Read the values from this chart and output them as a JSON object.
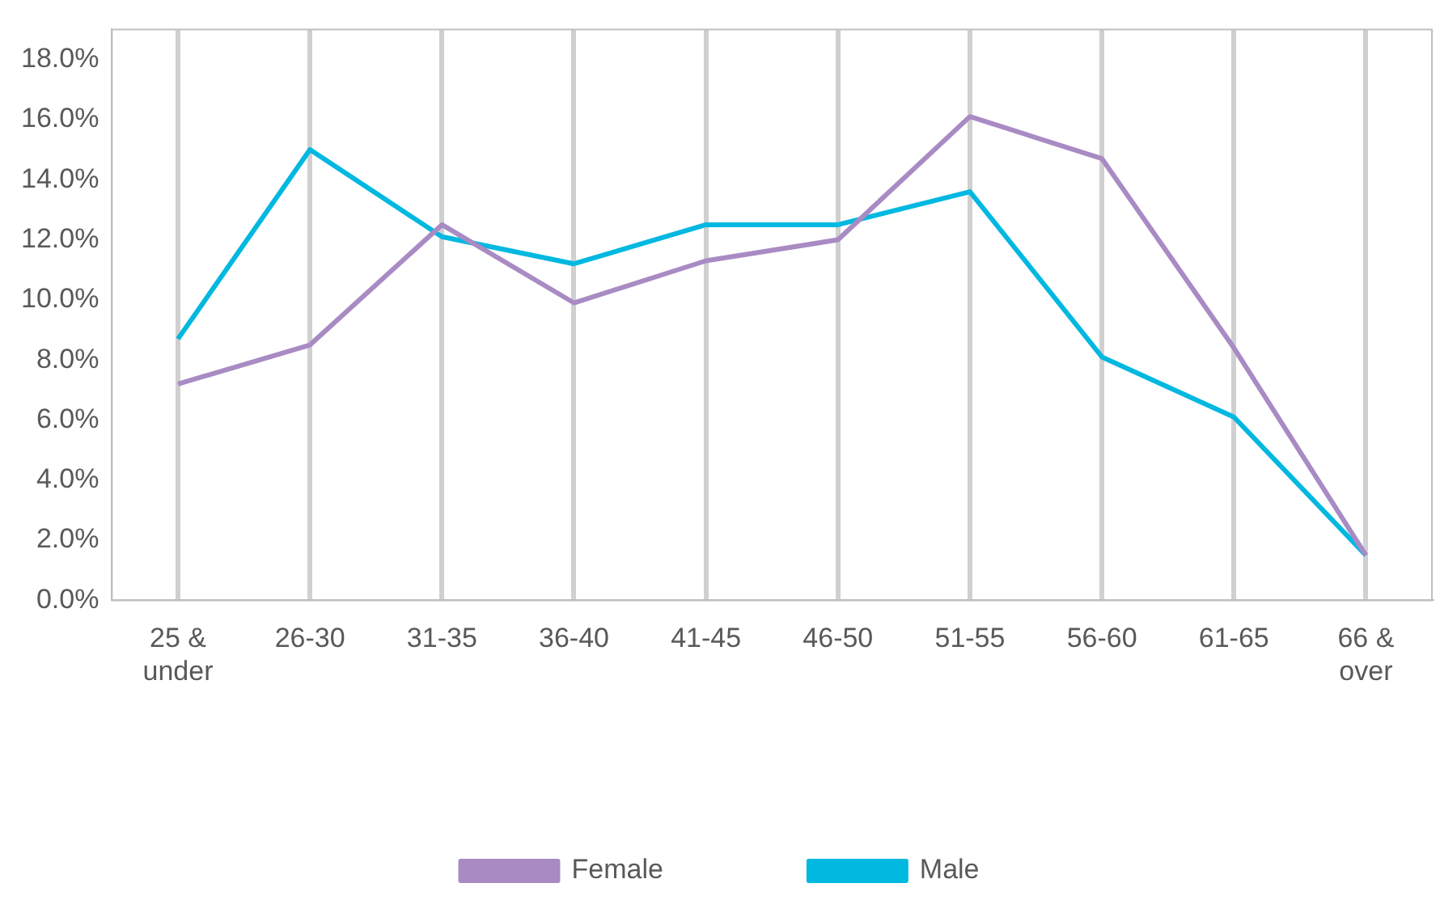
{
  "chart_data": {
    "type": "line",
    "categories": [
      "25 & under",
      "26-30",
      "31-35",
      "36-40",
      "41-45",
      "46-50",
      "51-55",
      "56-60",
      "61-65",
      "66 & over"
    ],
    "series": [
      {
        "name": "Female",
        "color": "#a98bc4",
        "values": [
          7.2,
          8.5,
          12.5,
          9.9,
          11.3,
          12.0,
          16.1,
          14.7,
          8.4,
          1.5
        ]
      },
      {
        "name": "Male",
        "color": "#00b8e0",
        "values": [
          8.7,
          15.0,
          12.1,
          11.2,
          12.5,
          12.5,
          13.6,
          8.1,
          6.1,
          1.5
        ]
      }
    ],
    "ylim": [
      0,
      19
    ],
    "yticks": [
      {
        "value": 0,
        "label": "0.0%"
      },
      {
        "value": 2,
        "label": "2.0%"
      },
      {
        "value": 4,
        "label": "4.0%"
      },
      {
        "value": 6,
        "label": "6.0%"
      },
      {
        "value": 8,
        "label": "8.0%"
      },
      {
        "value": 10,
        "label": "10.0%"
      },
      {
        "value": 12,
        "label": "12.0%"
      },
      {
        "value": 14,
        "label": "14.0%"
      },
      {
        "value": 16,
        "label": "16.0%"
      },
      {
        "value": 18,
        "label": "18.0%"
      }
    ],
    "grid": "x",
    "legend": "bottom",
    "marker": "none",
    "line_style": "solid"
  }
}
